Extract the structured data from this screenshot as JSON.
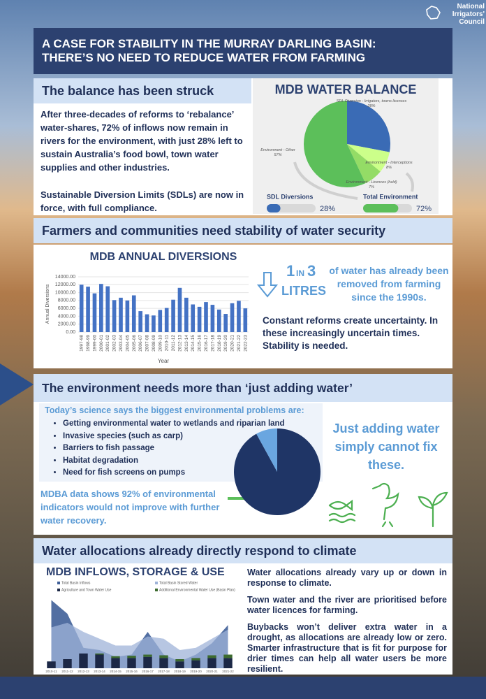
{
  "logo": {
    "lines": [
      "National",
      "Irrigators'",
      "Council"
    ]
  },
  "header": {
    "title_lines": [
      "A CASE FOR STABILITY IN THE MURRAY DARLING BASIN:",
      "THERE’S NO NEED TO REDUCE WATER FROM FARMING"
    ]
  },
  "balance": {
    "heading": "The balance has been struck",
    "paragraphs": [
      "After three-decades of reforms to ‘rebalance’ water-shares, 72% of inflows now remain in rivers for the environment, with just 28% left to sustain Australia’s food bowl, town water supplies and other industries.",
      "Sustainable Diversion Limits (SDLs) are now in force, with full compliance."
    ],
    "chart": {
      "type": "pie",
      "title": "MDB WATER BALANCE",
      "categories": [
        "SDL Diversion - Irrigators, towns licences",
        "Environment - Interceptions",
        "Environment - Licences (held)",
        "Environment - Other"
      ],
      "values": [
        28,
        8,
        7,
        57
      ],
      "value_labels": [
        "28%",
        "8%",
        "7%",
        "57%"
      ],
      "colors": [
        "#3a6bb5",
        "#ccff8a",
        "#94dc66",
        "#5cbf5a"
      ]
    },
    "bars": {
      "xlim": [
        0,
        100
      ],
      "items": [
        {
          "label": "SDL Diversions",
          "value": 28,
          "value_label": "28%",
          "color": "#3a6bb5"
        },
        {
          "label": "Total Environment",
          "value": 72,
          "value_label": "72%",
          "color": "#5cbf5a"
        }
      ]
    }
  },
  "security": {
    "heading": "Farmers and communities need stability of water security",
    "chart": {
      "type": "bar",
      "title": "MDB ANNUAL DIVERSIONS",
      "x_label": "Year",
      "y_label": "Annual Diversions",
      "categories": [
        "1997-98",
        "1998-99",
        "1999-00",
        "2000-01",
        "2001-02",
        "2002-03",
        "2003-04",
        "2004-05",
        "2005-06",
        "2006-07",
        "2007-08",
        "2008-09",
        "2009-10",
        "2010-11",
        "2011-12",
        "2012-13",
        "2013-14",
        "2014-15",
        "2015-16",
        "2016-17",
        "2017-18",
        "2018-19",
        "2019-20",
        "2020-21",
        "2021-22",
        "2022-23"
      ],
      "values": [
        12000,
        11500,
        9800,
        12200,
        11600,
        8100,
        8700,
        8000,
        9300,
        5300,
        4500,
        4200,
        5600,
        6100,
        8200,
        11200,
        8700,
        7000,
        6400,
        7600,
        6900,
        5700,
        4600,
        7300,
        7900,
        6000
      ],
      "color": "#4472c4",
      "ylim": [
        0,
        14000
      ],
      "yticks": [
        {
          "value": 0,
          "label": "0.00"
        },
        {
          "value": 2000,
          "label": "2000.00"
        },
        {
          "value": 4000,
          "label": "4000.00"
        },
        {
          "value": 6000,
          "label": "6000.00"
        },
        {
          "value": 8000,
          "label": "8000.00"
        },
        {
          "value": 10000,
          "label": "10000.00"
        },
        {
          "value": 12000,
          "label": "12000.00"
        },
        {
          "value": 14000,
          "label": "14000.00"
        }
      ]
    },
    "ratio": [
      "1",
      "IN",
      "3"
    ],
    "ratio_unit": "LITRES",
    "ratio_text": "of water has already been removed from farming since the 1990s.",
    "stability_text": "Constant reforms create uncertainty. In these increasingly uncertain times. Stability is needed."
  },
  "environment": {
    "heading": "The environment needs more than ‘just adding water’",
    "intro": "Today’s science says the biggest environmental problems are:",
    "bullets": [
      "Getting environmental water to wetlands and riparian land",
      "Invasive species (such as carp)",
      "Barriers to fish passage",
      "Habitat degradation",
      "Need for fish screens on pumps"
    ],
    "chart": {
      "type": "pie",
      "values": [
        92,
        8
      ],
      "colors": [
        "#1f3566",
        "#6aa6e0"
      ]
    },
    "note": "MDBA data shows 92% of environmental indicators would not improve with further water recovery.",
    "callout": "Just adding water simply cannot fix these."
  },
  "climate": {
    "heading": "Water allocations already directly respond to climate",
    "chart": {
      "type": "area",
      "title": "MDB INFLOWS, STORAGE & USE",
      "categories": [
        "2010-11",
        "2011-12",
        "2012-13",
        "2013-14",
        "2014-15",
        "2015-16",
        "2016-17",
        "2017-18",
        "2018-19",
        "2019-20",
        "2020-21",
        "2021-22"
      ],
      "ylim": [
        0,
        32000
      ],
      "series": [
        {
          "name": "Total Basin Inflows",
          "mark": "area",
          "color": "#3f5f98",
          "values": [
            30000,
            24000,
            9000,
            8000,
            5000,
            6000,
            16000,
            6000,
            3000,
            6000,
            11000,
            19000
          ]
        },
        {
          "name": "Total Basin Stored Water",
          "mark": "area",
          "color": "#9fb3d8",
          "values": [
            18000,
            20000,
            16000,
            13000,
            10000,
            10000,
            14000,
            13000,
            8000,
            9000,
            13000,
            17000
          ]
        },
        {
          "name": "Agriculture and Town Water Use",
          "mark": "bar",
          "color": "#1c2846",
          "values": [
            3000,
            4000,
            6500,
            6000,
            4500,
            4500,
            5000,
            4500,
            3000,
            3500,
            4500,
            4500
          ]
        },
        {
          "name": "Additional Environmental Water Use (Basin Plan)",
          "mark": "bar",
          "color": "#3d6b2f",
          "values": [
            0,
            0,
            0,
            500,
            800,
            1000,
            1000,
            1200,
            1000,
            1000,
            1200,
            1500
          ]
        }
      ]
    },
    "paragraphs": [
      "Water allocations already vary up or down in response to climate.",
      "Town water and the river are prioritised before water licences for farming.",
      "Buybacks won’t deliver extra water in a drought, as allocations are already low or zero. Smarter infrastructure that is fit for purpose for drier times can help all water users be more resilient."
    ]
  }
}
